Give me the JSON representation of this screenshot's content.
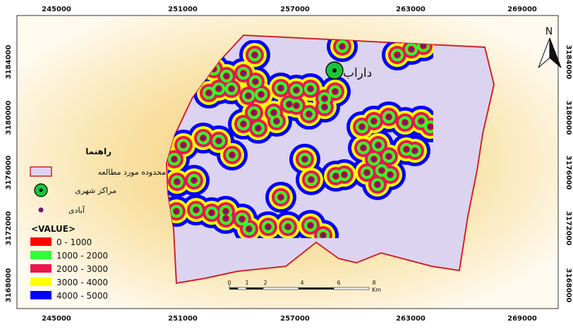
{
  "map": {
    "x_ticks": [
      "245000",
      "251000",
      "257000",
      "263000",
      "269000"
    ],
    "y_ticks": [
      "3184000",
      "3180000",
      "3176000",
      "3172000",
      "3168000"
    ],
    "north_label": "N",
    "city_label": "داراب",
    "colors": {
      "frame_background_outer": "#fffaf0",
      "frame_background_inner": "#f4d67e",
      "study_area_fill": "#dcd3f0",
      "study_area_outline": "#d0232a",
      "urban_center_fill": "#19c53c",
      "village_fill": "#6d1a76"
    }
  },
  "legend": {
    "title": "راهنما",
    "items": [
      {
        "label": "محدوده مورد مطالعه",
        "symbol": "study-area"
      },
      {
        "label": "مراکز شهری",
        "symbol": "urban-center"
      },
      {
        "label": "آبادی",
        "symbol": "village"
      }
    ],
    "value_title": "<VALUE>",
    "classes": [
      {
        "label": "0 - 1000",
        "color": "#ff0000"
      },
      {
        "label": "1000 - 2000",
        "color": "#33ff33"
      },
      {
        "label": "2000 - 3000",
        "color": "#e8164f"
      },
      {
        "label": "3000 - 4000",
        "color": "#ffff00"
      },
      {
        "label": "4000 - 5000",
        "color": "#0000ff"
      }
    ]
  },
  "scale_bar": {
    "labels": [
      "0",
      "1",
      "2",
      "4",
      "6",
      "8"
    ],
    "unit": "Km"
  }
}
